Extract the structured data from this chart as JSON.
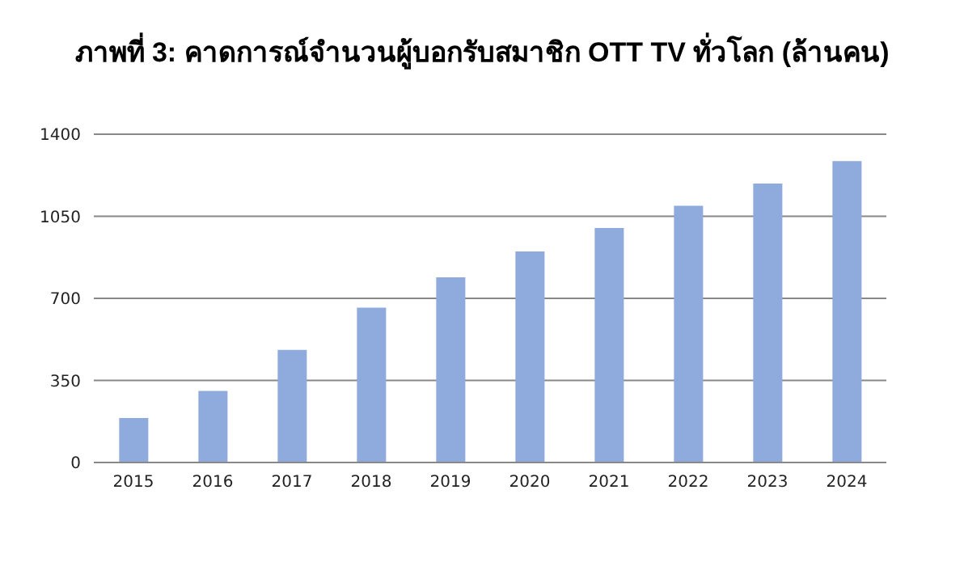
{
  "chart_data": {
    "type": "bar",
    "title": "ภาพที่ 3: คาดการณ์จำนวนผู้บอกรับสมาชิก OTT TV ทั่วโลก (ล้านคน)",
    "categories": [
      "2015",
      "2016",
      "2017",
      "2018",
      "2019",
      "2020",
      "2021",
      "2022",
      "2023",
      "2024"
    ],
    "values": [
      190,
      305,
      480,
      660,
      790,
      900,
      1000,
      1095,
      1190,
      1285
    ],
    "color": "#8faadc",
    "ylim": [
      0,
      1400
    ],
    "yticks": [
      0,
      350,
      700,
      1050,
      1400
    ],
    "grid": "y"
  }
}
